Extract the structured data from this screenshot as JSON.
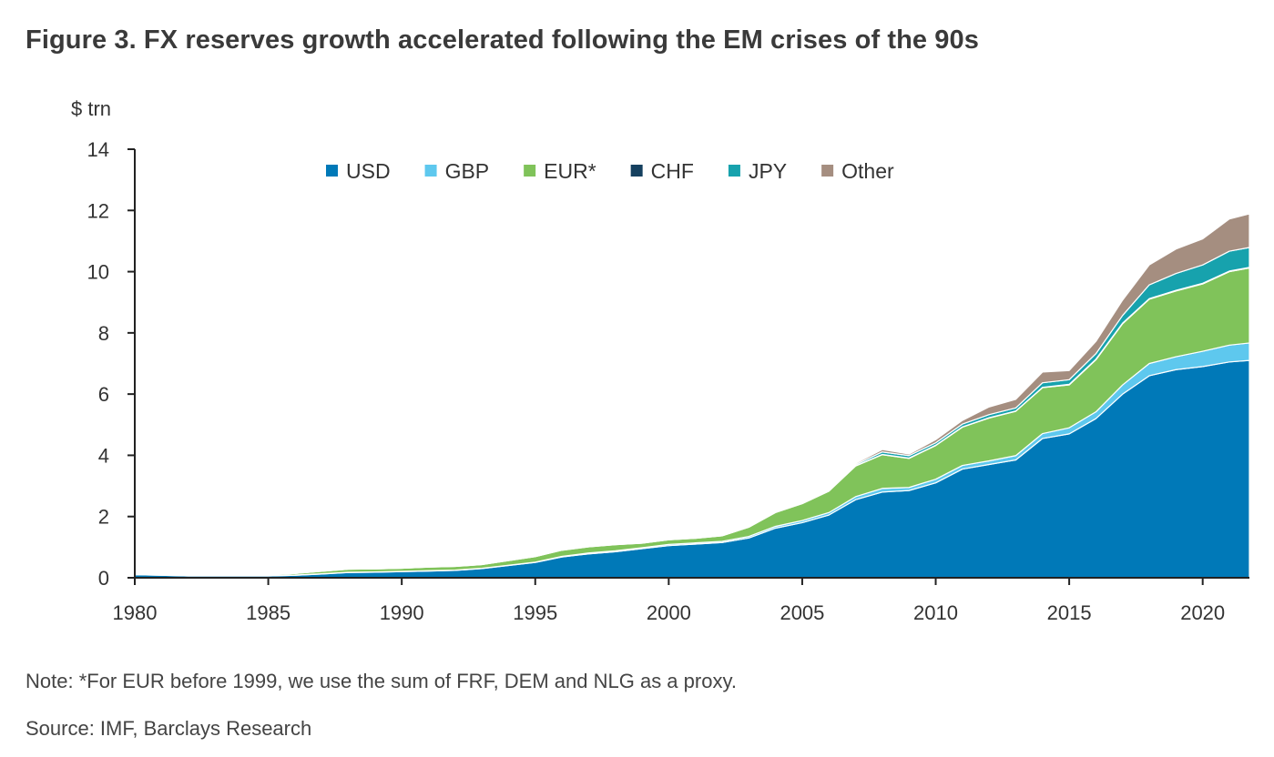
{
  "title": "Figure 3. FX reserves growth accelerated following the EM crises of the 90s",
  "note": "Note: *For EUR before 1999, we use the sum of FRF, DEM and NLG as a proxy.",
  "source": "Source: IMF, Barclays Research",
  "chart_data": {
    "type": "area",
    "stacked": true,
    "title": "Figure 3. FX reserves growth accelerated following the EM crises of the 90s",
    "ylabel": "$ trn",
    "xlabel": "",
    "xlim": [
      1980,
      2021.75
    ],
    "ylim": [
      0,
      14
    ],
    "xticks": [
      1980,
      1985,
      1990,
      1995,
      2000,
      2005,
      2010,
      2015,
      2020
    ],
    "yticks": [
      0,
      2,
      4,
      6,
      8,
      10,
      12,
      14
    ],
    "legend_position": "top-center",
    "grid": false,
    "x": [
      1980,
      1981,
      1982,
      1983,
      1984,
      1985,
      1986,
      1987,
      1988,
      1989,
      1990,
      1991,
      1992,
      1993,
      1994,
      1995,
      1996,
      1997,
      1998,
      1999,
      2000,
      2001,
      2002,
      2003,
      2004,
      2005,
      2006,
      2007,
      2008,
      2009,
      2010,
      2011,
      2012,
      2013,
      2014,
      2015,
      2016,
      2017,
      2018,
      2019,
      2020,
      2021,
      2021.75
    ],
    "series": [
      {
        "name": "USD",
        "color": "#0079b8",
        "values": [
          0.1,
          0.08,
          0.06,
          0.06,
          0.06,
          0.06,
          0.08,
          0.12,
          0.17,
          0.18,
          0.2,
          0.22,
          0.24,
          0.3,
          0.4,
          0.5,
          0.68,
          0.78,
          0.85,
          0.95,
          1.05,
          1.1,
          1.15,
          1.3,
          1.62,
          1.8,
          2.05,
          2.55,
          2.8,
          2.85,
          3.1,
          3.55,
          3.7,
          3.85,
          4.55,
          4.7,
          5.2,
          6.0,
          6.6,
          6.8,
          6.9,
          7.05,
          7.1
        ]
      },
      {
        "name": "GBP",
        "color": "#5ec8ee",
        "values": [
          0.01,
          0.01,
          0.01,
          0.01,
          0.01,
          0.01,
          0.01,
          0.01,
          0.01,
          0.01,
          0.01,
          0.01,
          0.01,
          0.01,
          0.01,
          0.01,
          0.02,
          0.03,
          0.03,
          0.03,
          0.04,
          0.04,
          0.04,
          0.05,
          0.06,
          0.07,
          0.08,
          0.1,
          0.12,
          0.1,
          0.12,
          0.12,
          0.12,
          0.14,
          0.16,
          0.2,
          0.22,
          0.3,
          0.4,
          0.42,
          0.5,
          0.55,
          0.57
        ]
      },
      {
        "name": "EUR*",
        "color": "#80c35a",
        "values": [
          0.03,
          0.03,
          0.02,
          0.02,
          0.02,
          0.03,
          0.05,
          0.08,
          0.1,
          0.1,
          0.1,
          0.12,
          0.12,
          0.12,
          0.15,
          0.18,
          0.2,
          0.2,
          0.2,
          0.15,
          0.15,
          0.15,
          0.18,
          0.3,
          0.45,
          0.55,
          0.7,
          1.0,
          1.1,
          0.95,
          1.1,
          1.25,
          1.4,
          1.45,
          1.5,
          1.4,
          1.7,
          2.0,
          2.1,
          2.15,
          2.2,
          2.4,
          2.45
        ]
      },
      {
        "name": "CHF",
        "color": "#15405f",
        "values": [
          0.002,
          0.002,
          0.002,
          0.002,
          0.002,
          0.002,
          0.002,
          0.003,
          0.003,
          0.003,
          0.003,
          0.003,
          0.003,
          0.003,
          0.003,
          0.004,
          0.004,
          0.004,
          0.004,
          0.004,
          0.004,
          0.004,
          0.005,
          0.006,
          0.008,
          0.008,
          0.01,
          0.01,
          0.01,
          0.01,
          0.01,
          0.01,
          0.01,
          0.01,
          0.01,
          0.02,
          0.02,
          0.02,
          0.02,
          0.02,
          0.02,
          0.02,
          0.02
        ]
      },
      {
        "name": "JPY",
        "color": "#17a2ad",
        "values": [
          0.005,
          0.005,
          0.005,
          0.005,
          0.005,
          0.005,
          0.005,
          0.01,
          0.01,
          0.01,
          0.01,
          0.01,
          0.01,
          0.01,
          0.01,
          0.02,
          0.02,
          0.02,
          0.02,
          0.02,
          0.02,
          0.02,
          0.02,
          0.03,
          0.03,
          0.03,
          0.03,
          0.04,
          0.08,
          0.08,
          0.08,
          0.09,
          0.1,
          0.1,
          0.15,
          0.15,
          0.18,
          0.25,
          0.45,
          0.55,
          0.6,
          0.65,
          0.65
        ]
      },
      {
        "name": "Other",
        "color": "#a58e80",
        "values": [
          0.01,
          0.01,
          0.01,
          0.01,
          0.01,
          0.01,
          0.01,
          0.01,
          0.01,
          0.01,
          0.01,
          0.01,
          0.01,
          0.01,
          0.01,
          0.01,
          0.01,
          0.01,
          0.01,
          0.01,
          0.01,
          0.01,
          0.01,
          0.01,
          0.02,
          0.02,
          0.02,
          0.04,
          0.08,
          0.05,
          0.1,
          0.12,
          0.25,
          0.28,
          0.35,
          0.3,
          0.4,
          0.5,
          0.65,
          0.8,
          0.85,
          1.05,
          1.1
        ]
      }
    ]
  }
}
